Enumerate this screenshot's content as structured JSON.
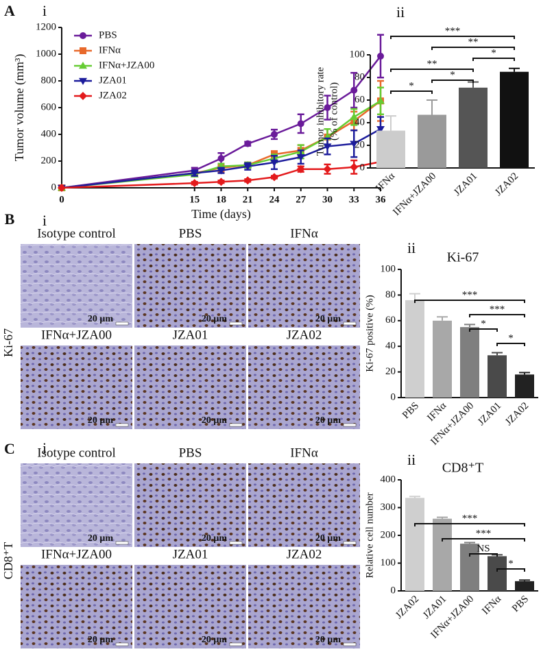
{
  "chart_data": [
    {
      "type": "line",
      "ylabel": "Tumor volume (mm³)",
      "xlabel": "Time (days)",
      "x": [
        0,
        15,
        18,
        21,
        24,
        27,
        30,
        33,
        36
      ],
      "xlim": [
        0,
        36
      ],
      "xticks": [
        0,
        15,
        18,
        21,
        24,
        27,
        30,
        33,
        36
      ],
      "ylim": [
        0,
        1200
      ],
      "yticks": [
        0,
        200,
        400,
        600,
        800,
        1000,
        1200
      ],
      "legend": "upper left",
      "series": [
        {
          "name": "PBS",
          "color": "#6a1b9a",
          "marker": "circle",
          "values": [
            0,
            130,
            220,
            330,
            400,
            480,
            600,
            730,
            985
          ],
          "errors": [
            0,
            20,
            40,
            15,
            35,
            70,
            90,
            130,
            160
          ]
        },
        {
          "name": "IFNα",
          "color": "#e8692b",
          "marker": "square",
          "values": [
            0,
            110,
            150,
            170,
            250,
            280,
            380,
            500,
            650
          ],
          "errors": [
            0,
            15,
            30,
            20,
            25,
            40,
            60,
            70,
            150
          ]
        },
        {
          "name": "IFNα+JZA00",
          "color": "#66cc33",
          "marker": "triangle-up",
          "values": [
            0,
            100,
            160,
            170,
            220,
            270,
            380,
            530,
            650
          ],
          "errors": [
            0,
            15,
            20,
            20,
            30,
            50,
            60,
            60,
            100
          ]
        },
        {
          "name": "JZA01",
          "color": "#1c1c9c",
          "marker": "triangle-down",
          "values": [
            0,
            110,
            130,
            160,
            190,
            230,
            310,
            330,
            440
          ],
          "errors": [
            0,
            20,
            20,
            25,
            50,
            50,
            60,
            100,
            90
          ]
        },
        {
          "name": "JZA02",
          "color": "#e31a1c",
          "marker": "diamond",
          "values": [
            0,
            35,
            45,
            55,
            80,
            140,
            140,
            155,
            195
          ],
          "errors": [
            0,
            10,
            10,
            10,
            10,
            20,
            35,
            50,
            40
          ]
        }
      ]
    },
    {
      "type": "bar",
      "ylabel": [
        "Tumor inhibitory rate",
        "(% of control)"
      ],
      "categories": [
        "IFNα",
        "IFNα+JZA00",
        "JZA01",
        "JZA02"
      ],
      "values": [
        33,
        47,
        71,
        85
      ],
      "errors": [
        13,
        13,
        5,
        3
      ],
      "colors": [
        "#cccccc",
        "#9a9a9a",
        "#555555",
        "#111111"
      ],
      "ylim": [
        0,
        100
      ],
      "yticks": [
        0,
        20,
        40,
        60,
        80,
        100
      ],
      "significance": [
        {
          "from": 0,
          "to": 3,
          "label": "***"
        },
        {
          "from": 1,
          "to": 3,
          "label": "**"
        },
        {
          "from": 2,
          "to": 3,
          "label": "*"
        },
        {
          "from": 0,
          "to": 2,
          "label": "**"
        },
        {
          "from": 1,
          "to": 2,
          "label": "*"
        },
        {
          "from": 0,
          "to": 1,
          "label": "*"
        }
      ]
    },
    {
      "type": "bar",
      "title": "Ki-67",
      "ylabel": "Ki-67  positive (%)",
      "categories": [
        "PBS",
        "IFNα",
        "IFNα+JZA00",
        "JZA01",
        "JZA02"
      ],
      "values": [
        76,
        60,
        55,
        33,
        18
      ],
      "errors": [
        5,
        3,
        2,
        2,
        1.5
      ],
      "colors": [
        "#cfcfcf",
        "#a8a8a8",
        "#7f7f7f",
        "#4a4a4a",
        "#222222"
      ],
      "ylim": [
        0,
        100
      ],
      "yticks": [
        0,
        20,
        40,
        60,
        80,
        100
      ],
      "significance": [
        {
          "from": 0,
          "to": 4,
          "label": "***"
        },
        {
          "from": 2,
          "to": 4,
          "label": "***"
        },
        {
          "from": 2,
          "to": 3,
          "label": "*"
        },
        {
          "from": 3,
          "to": 4,
          "label": "*"
        }
      ]
    },
    {
      "type": "bar",
      "title": "CD8⁺T",
      "ylabel": "Relative cell number",
      "categories": [
        "JZA02",
        "JZA01",
        "IFNα+JZA00",
        "IFNα",
        "PBS"
      ],
      "values": [
        335,
        260,
        170,
        125,
        35
      ],
      "errors": [
        5,
        5,
        4,
        5,
        4
      ],
      "colors": [
        "#cfcfcf",
        "#a8a8a8",
        "#7f7f7f",
        "#4a4a4a",
        "#222222"
      ],
      "ylim": [
        0,
        400
      ],
      "yticks": [
        0,
        100,
        200,
        300,
        400
      ],
      "significance": [
        {
          "from": 0,
          "to": 4,
          "label": "***"
        },
        {
          "from": 1,
          "to": 4,
          "label": "***"
        },
        {
          "from": 2,
          "to": 3,
          "label": "NS"
        },
        {
          "from": 3,
          "to": 4,
          "label": "*"
        }
      ]
    }
  ],
  "figure": {
    "panels": [
      {
        "letter": "A",
        "left": "i",
        "right": "ii"
      },
      {
        "letter": "B",
        "left": "i",
        "right": "ii",
        "row_label": "Ki-67",
        "scale_bar": "20 μm",
        "images": [
          "Isotype control",
          "PBS",
          "IFNα",
          "IFNα+JZA00",
          "JZA01",
          "JZA02"
        ]
      },
      {
        "letter": "C",
        "left": "i",
        "right": "ii",
        "row_label": "CD8⁺T",
        "scale_bar": "20 μm",
        "images": [
          "Isotype control",
          "PBS",
          "IFNα",
          "IFNα+JZA00",
          "JZA01",
          "JZA02"
        ]
      }
    ]
  }
}
